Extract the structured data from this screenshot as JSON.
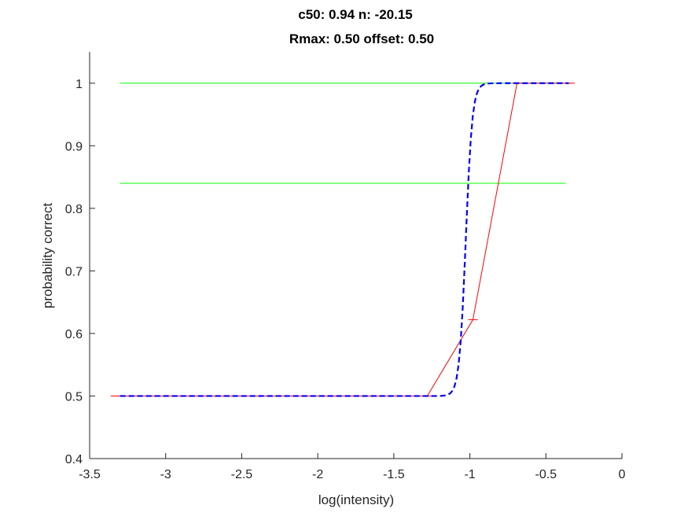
{
  "chart_data": {
    "type": "line",
    "title_line1": "c50: 0.94 n: -20.15",
    "title_line2": "Rmax: 0.50 offset: 0.50",
    "xlabel": "log(intensity)",
    "ylabel": "probability correct",
    "xlim": [
      -3.5,
      0
    ],
    "ylim": [
      0.4,
      1.05
    ],
    "xticks": [
      -3.5,
      -3,
      -2.5,
      -2,
      -1.5,
      -1,
      -0.5,
      0
    ],
    "xtick_labels": [
      "-3.5",
      "-3",
      "-2.5",
      "-2",
      "-1.5",
      "-1",
      "-0.5",
      "0"
    ],
    "yticks": [
      0.4,
      0.5,
      0.6,
      0.7,
      0.8,
      0.9,
      1.0
    ],
    "ytick_labels": [
      "0.4",
      "0.5",
      "0.6",
      "0.7",
      "0.8",
      "0.9",
      "1"
    ],
    "grid": false,
    "box": false,
    "fit": {
      "c50": 0.94,
      "n": -20.15,
      "rmax": 0.5,
      "offset": 0.5
    },
    "series": [
      {
        "style": "line",
        "color": "#00ff00",
        "x": [
          -3.3,
          -0.35
        ],
        "y": [
          1.0,
          1.0
        ]
      },
      {
        "style": "line",
        "color": "#00ff00",
        "x": [
          -3.3,
          -0.37
        ],
        "y": [
          0.84,
          0.84
        ]
      },
      {
        "style": "errorbar-line",
        "color": "#ff0000",
        "x": [
          -3.33,
          -1.28,
          -0.98,
          -0.69,
          -0.34
        ],
        "y": [
          0.5,
          0.5,
          0.622,
          1.0,
          1.0
        ]
      },
      {
        "style": "dashed",
        "color": "#0000ff",
        "x_range": [
          -3.3,
          -0.35
        ]
      }
    ]
  }
}
